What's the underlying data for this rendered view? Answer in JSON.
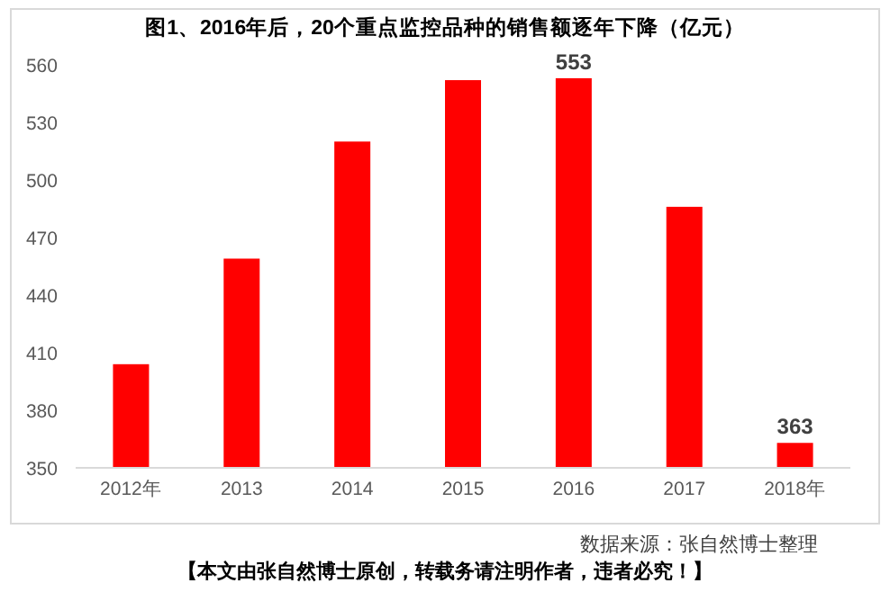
{
  "chart_data": {
    "type": "bar",
    "title": "图1、2016年后，20个重点监控品种的销售额逐年下降（亿元）",
    "categories": [
      "2012年",
      "2013",
      "2014",
      "2015",
      "2016",
      "2017",
      "2018年"
    ],
    "values": [
      404,
      459,
      520,
      552,
      553,
      486,
      363
    ],
    "color": "#ff0000",
    "value_labels": [
      null,
      null,
      null,
      null,
      "553",
      null,
      "363"
    ],
    "ylim": [
      350,
      560
    ],
    "yticks": [
      350,
      380,
      410,
      440,
      470,
      500,
      530,
      560
    ],
    "annotations": [
      "数据来源：张自然博士整理",
      "【本文由张自然博士原创，转载务请注明作者，违者必究！】"
    ]
  }
}
